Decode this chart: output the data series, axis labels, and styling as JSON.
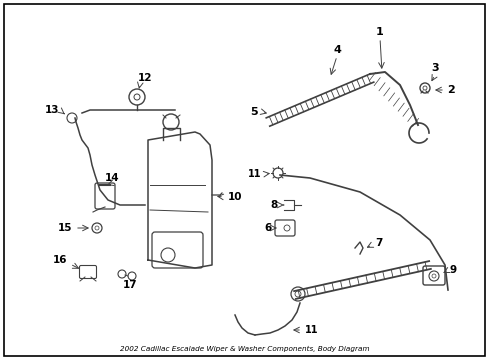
{
  "title": "2002 Cadillac Escalade Wiper & Washer Components, Body Diagram",
  "bg_color": "#ffffff",
  "border_color": "#000000",
  "line_color": "#404040",
  "text_color": "#000000"
}
